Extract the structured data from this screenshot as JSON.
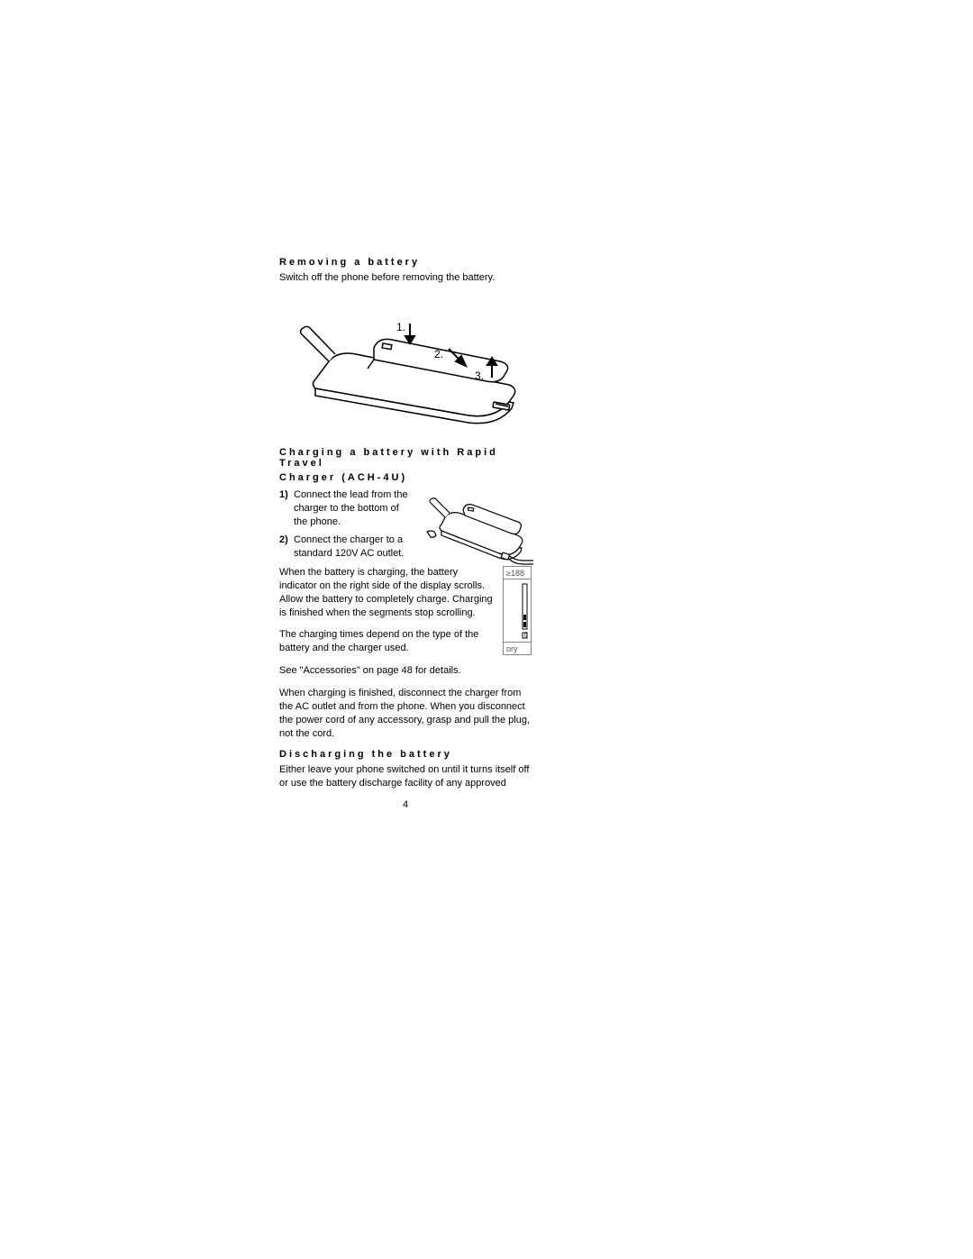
{
  "section1": {
    "heading": "Removing a battery",
    "body": "Switch off the phone before removing the battery."
  },
  "figure1": {
    "labels": [
      "1.",
      "2.",
      "3."
    ]
  },
  "section2": {
    "heading_line1": "Charging a battery with Rapid Travel",
    "heading_line2": "Charger (ACH-4U)",
    "step1_num": "1)",
    "step1_text": "Connect the lead from the charger to the bottom of the phone.",
    "step2_num": "2)",
    "step2_text": "Connect the charger to a standard 120V AC outlet.",
    "para1": "When the battery is charging, the battery indicator on the right side of the display scrolls. Allow the battery to completely charge. Charging is finished when the segments stop scrolling.",
    "para2": "The charging times depend on the type of the battery and the charger used.",
    "para3": "See \"Accessories\" on page 48 for details.",
    "para4": "When charging is finished, disconnect the charger from the AC outlet and from the phone. When you disconnect the power cord of any accessory, grasp and pull the plug, not the cord."
  },
  "figure3": {
    "top_text": "≥188",
    "bottom_text": "ory"
  },
  "section3": {
    "heading": "Discharging the battery",
    "body": "Either leave your phone switched on until it turns itself off or use the battery discharge facility of any approved"
  },
  "page_number": "4",
  "colors": {
    "stroke": "#000000",
    "bg": "#ffffff"
  }
}
